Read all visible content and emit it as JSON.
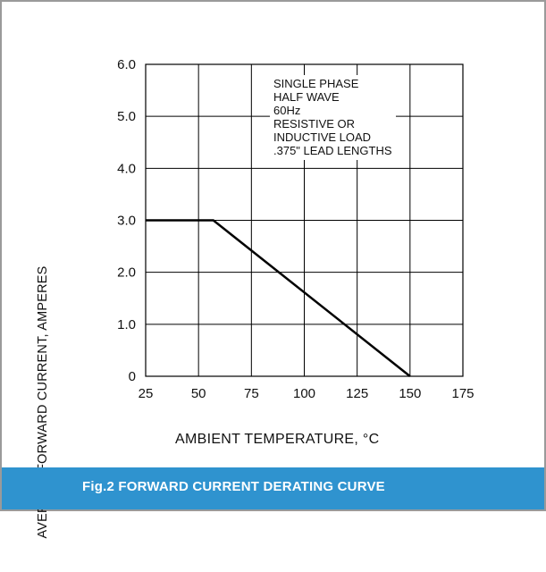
{
  "chart_data": {
    "type": "line",
    "title": "Fig.2 FORWARD CURRENT DERATING CURVE",
    "xlabel": "AMBIENT TEMPERATURE, °C",
    "ylabel": "AVERAGE FORWARD CURRENT, AMPERES",
    "xlim": [
      25,
      175
    ],
    "ylim": [
      0,
      6
    ],
    "xticks": [
      "25",
      "50",
      "75",
      "100",
      "125",
      "150",
      "175"
    ],
    "yticks": [
      "0",
      "1.0",
      "2.0",
      "3.0",
      "4.0",
      "5.0",
      "6.0"
    ],
    "grid": true,
    "series": [
      {
        "x": [
          25,
          57,
          150
        ],
        "y": [
          3.0,
          3.0,
          0
        ]
      }
    ],
    "annotations": [
      "SINGLE PHASE",
      "HALF WAVE",
      "60Hz",
      "RESISTIVE OR",
      "INDUCTIVE LOAD",
      ".375\" LEAD LENGTHS"
    ]
  },
  "caption": "Fig.2 FORWARD CURRENT DERATING CURVE"
}
